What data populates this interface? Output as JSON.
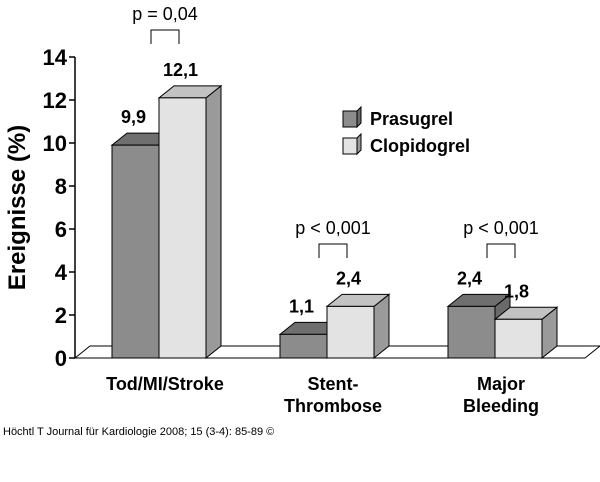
{
  "chart_data": {
    "type": "bar",
    "ylabel": "Ereignisse (%)",
    "ylim": [
      0,
      14
    ],
    "yticks": [
      "0",
      "2",
      "4",
      "6",
      "8",
      "10",
      "12",
      "14"
    ],
    "categories": [
      "Tod/MI/Stroke",
      "Stent-\nThrombose",
      "Major\nBleeding"
    ],
    "series": [
      {
        "name": "Prasugrel",
        "values": [
          9.9,
          1.1,
          2.4
        ],
        "labels": [
          "9,9",
          "1,1",
          "2,4"
        ],
        "color": "#8c8c8c"
      },
      {
        "name": "Clopidogrel",
        "values": [
          12.1,
          2.4,
          1.8
        ],
        "labels": [
          "12,1",
          "2,4",
          "1,8"
        ],
        "color": "#e3e3e3"
      }
    ],
    "p_values": [
      "p = 0,04",
      "p < 0,001",
      "p < 0,001"
    ],
    "legend_position": "right",
    "grid": false
  },
  "source": "Höchtl T Journal für Kardiologie 2008; 15 (3-4): 85-89 ©"
}
